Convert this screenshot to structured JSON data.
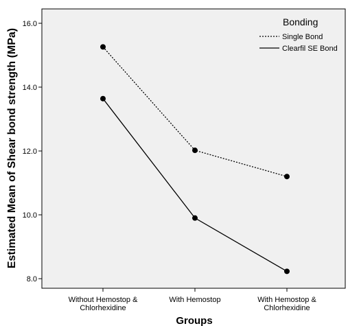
{
  "chart_data": {
    "type": "line",
    "xlabel": "Groups",
    "ylabel": "Estimated Mean of Shear bond strength (MPa)",
    "categories": [
      [
        "Without Hemostop &",
        "Chlorhexidine"
      ],
      [
        "With Hemostop"
      ],
      [
        "With Hemostop &",
        "Chlorhexidine"
      ]
    ],
    "ylim": [
      7.7,
      16.45
    ],
    "yticks": [
      {
        "value": 8.0,
        "label": "8.0"
      },
      {
        "value": 10.0,
        "label": "10.0"
      },
      {
        "value": 12.0,
        "label": "12.0"
      },
      {
        "value": 14.0,
        "label": "14.0"
      },
      {
        "value": 16.0,
        "label": "16.0"
      }
    ],
    "legend": {
      "title": "Bonding",
      "position": "top-right"
    },
    "series": [
      {
        "name": "Single Bond",
        "values": [
          15.26,
          12.02,
          11.2
        ],
        "line_style": "dotted",
        "color": "#000000"
      },
      {
        "name": "Clearfil SE Bond",
        "values": [
          13.64,
          9.9,
          8.23
        ],
        "line_style": "solid",
        "color": "#000000"
      }
    ],
    "background": "#f0f0f0",
    "grid": false
  }
}
